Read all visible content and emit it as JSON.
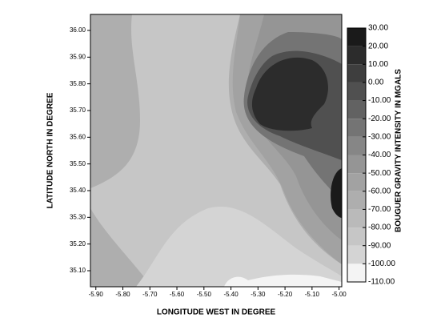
{
  "chart_data": {
    "type": "contour",
    "x_label": "LONGITUDE WEST IN DEGREE",
    "y_label": "LATITUDE NORTH IN DEGREE",
    "colorbar_label": "BOUGUER GRAVITY INTENSITY IN MGALS",
    "xlim": [
      -5.92,
      -4.99
    ],
    "ylim": [
      35.04,
      36.06
    ],
    "xticks": [
      {
        "value": -5.9,
        "label": "-5.90"
      },
      {
        "value": -5.8,
        "label": "-5.80"
      },
      {
        "value": -5.7,
        "label": "-5.70"
      },
      {
        "value": -5.6,
        "label": "-5.60"
      },
      {
        "value": -5.5,
        "label": "-5.50"
      },
      {
        "value": -5.4,
        "label": "-5.40"
      },
      {
        "value": -5.3,
        "label": "-5.30"
      },
      {
        "value": -5.2,
        "label": "-5.20"
      },
      {
        "value": -5.1,
        "label": "-5.10"
      },
      {
        "value": -5.0,
        "label": "-5.00"
      }
    ],
    "yticks": [
      {
        "value": 35.1,
        "label": "35.10"
      },
      {
        "value": 35.2,
        "label": "35.20"
      },
      {
        "value": 35.3,
        "label": "35.30"
      },
      {
        "value": 35.4,
        "label": "35.40"
      },
      {
        "value": 35.5,
        "label": "35.50"
      },
      {
        "value": 35.6,
        "label": "35.60"
      },
      {
        "value": 35.7,
        "label": "35.70"
      },
      {
        "value": 35.8,
        "label": "35.80"
      },
      {
        "value": 35.9,
        "label": "35.90"
      },
      {
        "value": 36.0,
        "label": "36.00"
      }
    ],
    "levels": [
      {
        "value": 30,
        "label": "30.00"
      },
      {
        "value": 20,
        "label": "20.00"
      },
      {
        "value": 10,
        "label": "10.00"
      },
      {
        "value": 0,
        "label": "0.00"
      },
      {
        "value": -10,
        "label": "-10.00"
      },
      {
        "value": -20,
        "label": "-20.00"
      },
      {
        "value": -30,
        "label": "-30.00"
      },
      {
        "value": -40,
        "label": "-40.00"
      },
      {
        "value": -50,
        "label": "-50.00"
      },
      {
        "value": -60,
        "label": "-60.00"
      },
      {
        "value": -70,
        "label": "-70.00"
      },
      {
        "value": -80,
        "label": "-80.00"
      },
      {
        "value": -90,
        "label": "-90.00"
      },
      {
        "value": -100,
        "label": "-100.00"
      },
      {
        "value": -110,
        "label": "-110.00"
      }
    ],
    "level_colors": [
      "#1a1a1a",
      "#2c2c2c",
      "#3e3e3e",
      "#505050",
      "#626262",
      "#747474",
      "#868686",
      "#959595",
      "#a2a2a2",
      "#aeaeae",
      "#bababa",
      "#c6c6c6",
      "#d4d4d4",
      "#f4f4f4"
    ]
  }
}
